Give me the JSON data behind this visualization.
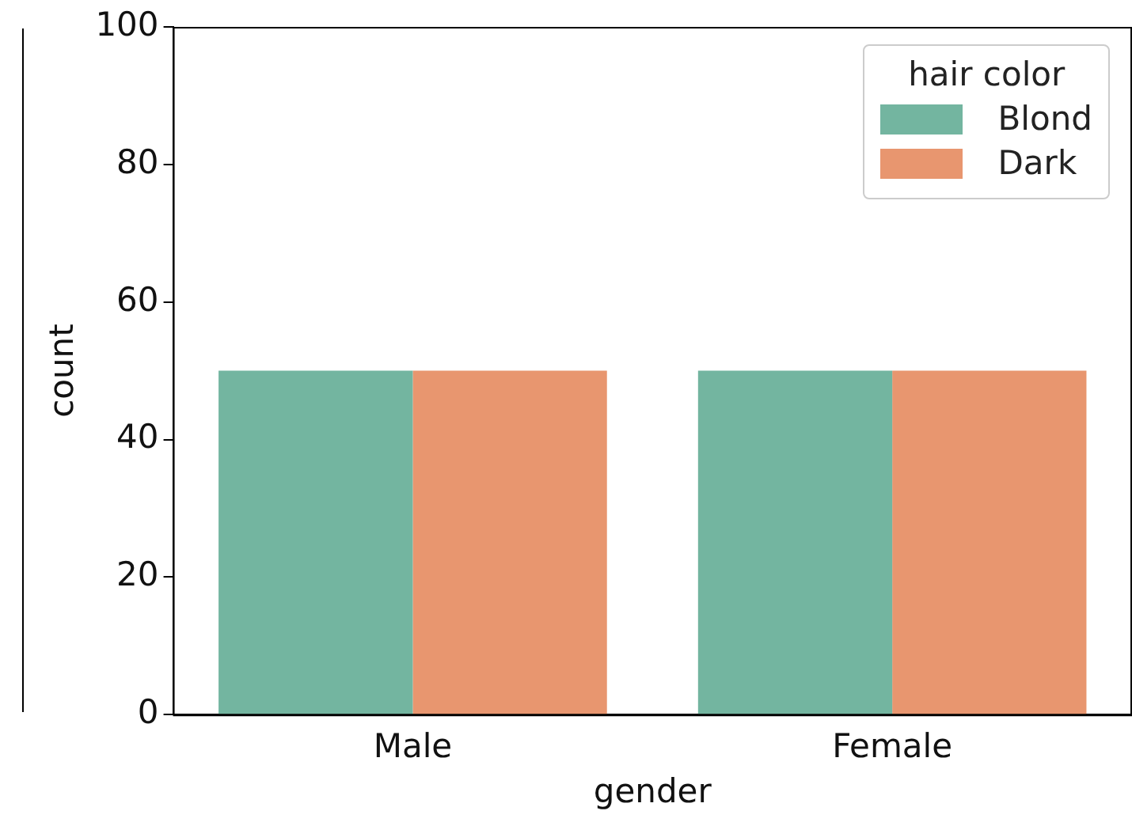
{
  "chart_data": {
    "type": "bar",
    "xlabel": "gender",
    "ylabel": "count",
    "legend_title": "hair color",
    "legend": "top right",
    "grid": false,
    "categories": [
      "Male",
      "Female"
    ],
    "series": [
      {
        "name": "Blond",
        "color": "#73b5a0",
        "values": [
          50,
          50
        ]
      },
      {
        "name": "Dark",
        "color": "#e8966f",
        "values": [
          50,
          50
        ]
      }
    ],
    "ylim": [
      0,
      100
    ],
    "yticks": [
      0,
      20,
      40,
      60,
      80,
      100
    ]
  }
}
